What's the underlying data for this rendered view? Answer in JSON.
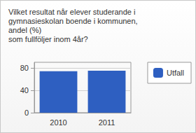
{
  "chart_data": {
    "type": "bar",
    "title": "Vilket resultat når elever studerande i\ngymnasieskolan boende i kommunen,\nandel (%)\nsom fullföljer inom 4år?",
    "categories": [
      "2010",
      "2011"
    ],
    "series": [
      {
        "name": "Utfall",
        "color": "#2e5fc1",
        "values": [
          74,
          75
        ]
      }
    ],
    "ylim": [
      0,
      90
    ],
    "yticks": [
      0,
      40,
      80
    ],
    "grid": true,
    "legend": "right"
  }
}
